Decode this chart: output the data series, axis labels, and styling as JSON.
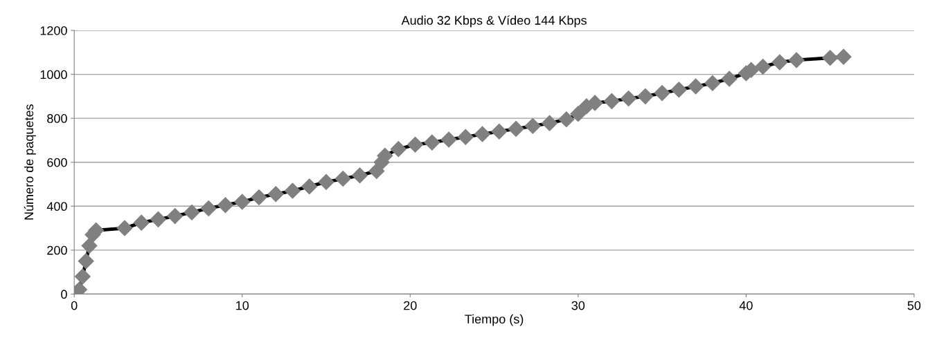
{
  "chart_data": {
    "type": "line",
    "title": "Audio 32 Kbps & Vídeo 144 Kbps",
    "xlabel": "Tiempo (s)",
    "ylabel": "Número de paquetes",
    "series": [
      {
        "color": "#808080",
        "x": [
          0,
          0.3,
          0.5,
          0.7,
          0.9,
          1.1,
          1.3,
          3,
          4,
          5,
          6,
          7,
          8,
          9,
          10,
          11,
          12,
          13,
          14,
          15,
          16,
          17,
          18,
          18.3,
          18.5,
          19.3,
          20.3,
          21.3,
          22.3,
          23.3,
          24.3,
          25.3,
          26.3,
          27.3,
          28.3,
          29.3,
          30,
          30.5,
          31,
          32,
          33,
          34,
          35,
          36,
          37,
          38,
          39,
          40,
          40.3,
          41,
          42,
          43,
          45,
          45.8
        ],
        "values": [
          0,
          20,
          80,
          150,
          220,
          270,
          290,
          300,
          325,
          340,
          355,
          372,
          390,
          405,
          420,
          440,
          455,
          470,
          490,
          510,
          525,
          540,
          560,
          600,
          630,
          660,
          680,
          690,
          703,
          715,
          728,
          740,
          752,
          765,
          778,
          795,
          820,
          855,
          870,
          878,
          890,
          900,
          915,
          930,
          945,
          960,
          980,
          1005,
          1020,
          1035,
          1055,
          1065,
          1075,
          1080
        ]
      }
    ],
    "xlim": [
      0,
      50
    ],
    "xticks": [
      0,
      10,
      20,
      30,
      40,
      50
    ],
    "ylim": [
      0,
      1200
    ],
    "yticks": [
      0,
      200,
      400,
      600,
      800,
      1000,
      1200
    ],
    "grid": "y",
    "marker": "diamond",
    "line_style": "solid"
  }
}
